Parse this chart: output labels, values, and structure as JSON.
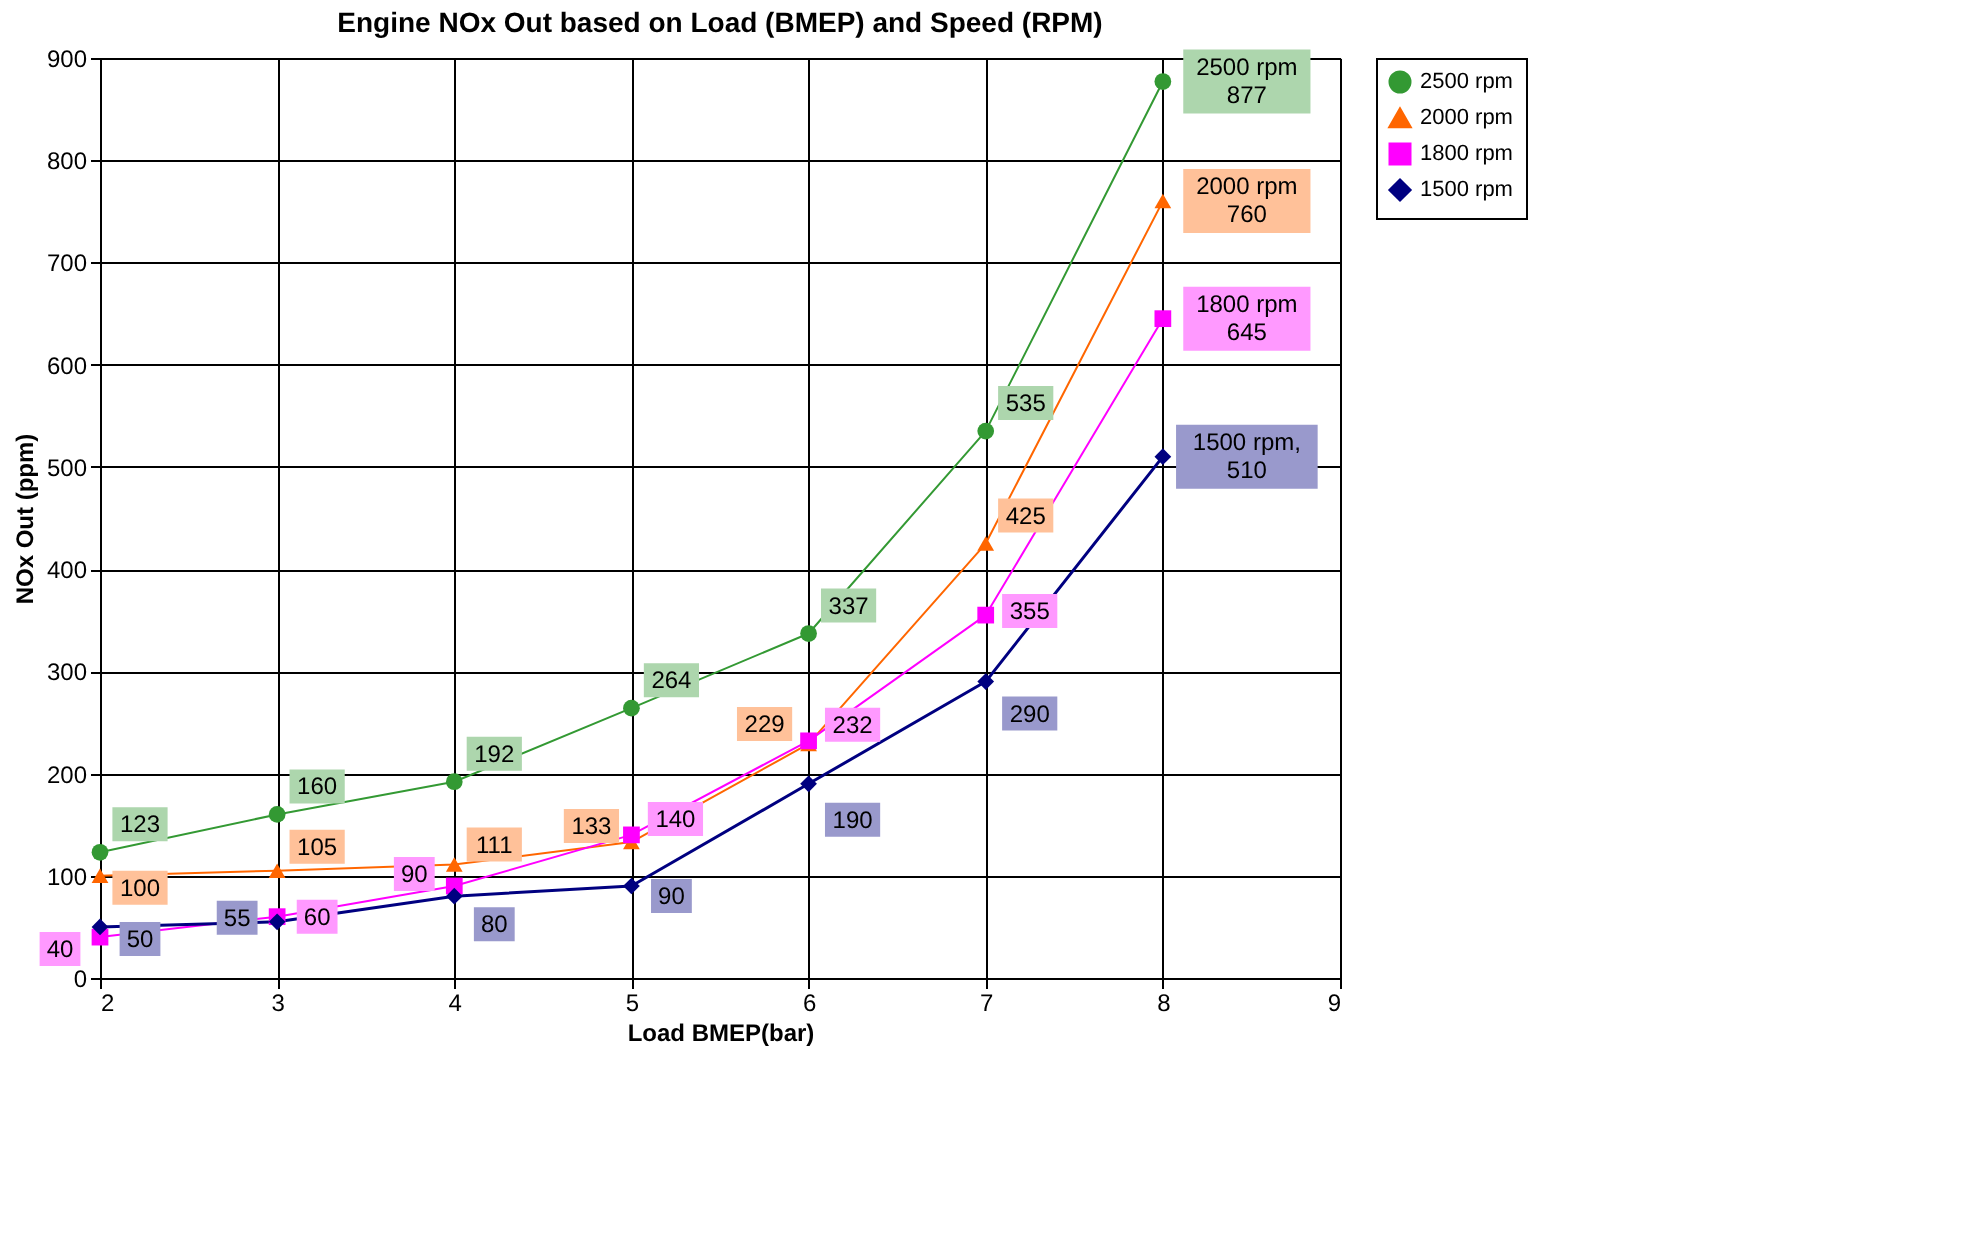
{
  "chart_data": {
    "type": "line",
    "title": "Engine NOx Out based on Load (BMEP) and Speed (RPM)",
    "xlabel": "Load BMEP(bar)",
    "ylabel": "NOx Out  (ppm)",
    "x": [
      2,
      3,
      4,
      5,
      6,
      7,
      8
    ],
    "series": [
      {
        "name": "2500 rpm",
        "color": "#339933",
        "marker": "circle",
        "values": [
          123,
          160,
          192,
          264,
          337,
          535,
          877
        ],
        "value_labels": [
          "123",
          "160",
          "192",
          "264",
          "337",
          "535",
          "2500 rpm\n877"
        ]
      },
      {
        "name": "2000 rpm",
        "color": "#ff6600",
        "marker": "triangle",
        "values": [
          100,
          105,
          111,
          133,
          229,
          425,
          760
        ],
        "value_labels": [
          "100",
          "105",
          "111",
          "133",
          "229",
          "425",
          "2000 rpm\n760"
        ]
      },
      {
        "name": "1800 rpm",
        "color": "#ff00ff",
        "marker": "square",
        "values": [
          40,
          60,
          90,
          140,
          232,
          355,
          645
        ],
        "value_labels": [
          "40",
          "60",
          "90",
          "140",
          "232",
          "355",
          "1800 rpm\n645"
        ]
      },
      {
        "name": "1500 rpm",
        "color": "#000080",
        "marker": "diamond",
        "values": [
          50,
          55,
          80,
          90,
          190,
          290,
          510
        ],
        "value_labels": [
          "50",
          "55",
          "80",
          "90",
          "190",
          "290",
          "1500 rpm,\n510"
        ]
      }
    ],
    "xlim": [
      2,
      9
    ],
    "xticks": [
      2,
      3,
      4,
      5,
      6,
      7,
      8,
      9
    ],
    "ylim": [
      0,
      900
    ],
    "yticks": [
      0,
      100,
      200,
      300,
      400,
      500,
      600,
      700,
      800,
      900
    ],
    "grid": true,
    "legend": "right",
    "line_style": "solid"
  }
}
